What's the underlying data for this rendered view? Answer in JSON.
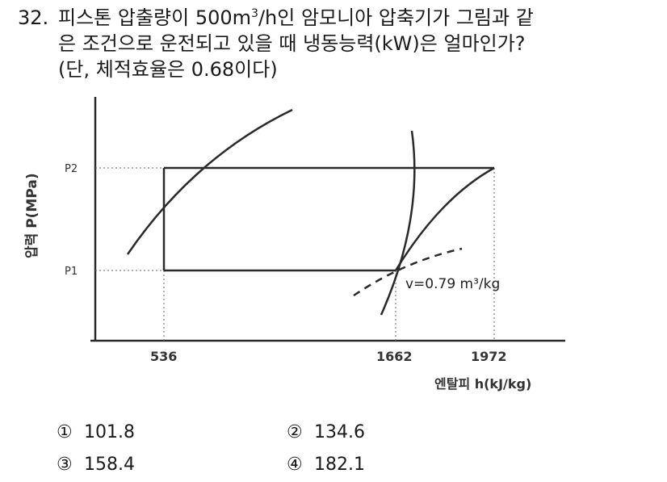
{
  "question": {
    "number": "32.",
    "line1_a": "피스톤 압출량이 500m",
    "line1_sup": "3",
    "line1_b": "/h인 암모니아 압축기가 그림과 같",
    "line2": "은 조건으로 운전되고 있을 때 냉동능력(kW)은 얼마인가?",
    "line3": "(단, 체적효율은 0.68이다)"
  },
  "diagram": {
    "y_axis_label": "압력 P(MPa)",
    "x_axis_label": "엔탈피 h(kJ/kg)",
    "p_labels": [
      "P2",
      "P1"
    ],
    "h_ticks": [
      "536",
      "1662",
      "1972"
    ],
    "specific_volume_label": "v=0.79 m³/kg"
  },
  "choices": [
    {
      "mark": "①",
      "value": "101.8"
    },
    {
      "mark": "②",
      "value": "134.6"
    },
    {
      "mark": "③",
      "value": "158.4"
    },
    {
      "mark": "④",
      "value": "182.1"
    }
  ]
}
